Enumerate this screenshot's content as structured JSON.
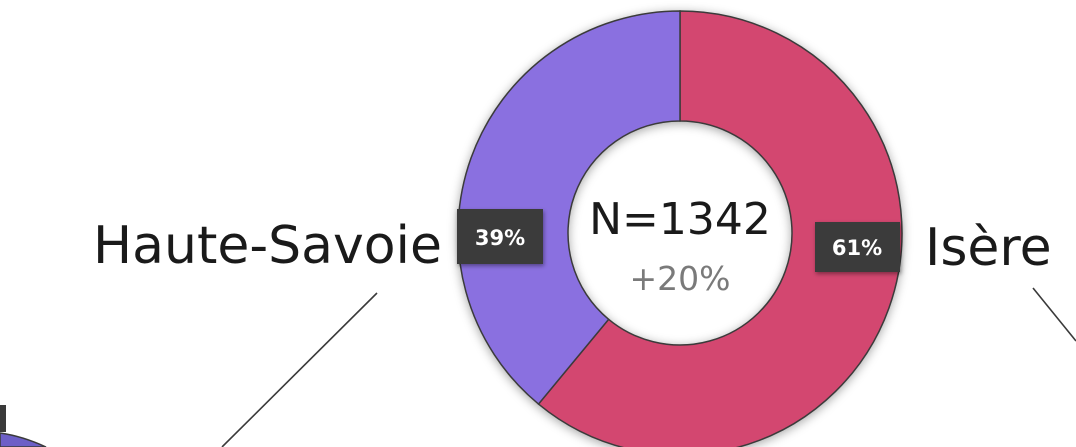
{
  "chart_data": {
    "type": "pie",
    "variant": "donut",
    "categories": [
      "Isère",
      "Haute-Savoie"
    ],
    "values": [
      61,
      39
    ],
    "data_labels": [
      "61%",
      "39%"
    ],
    "colors": [
      "#d3466f",
      "#8a70e0"
    ],
    "center_label": "N=1342",
    "center_sublabel": "+20%",
    "grid": false
  }
}
